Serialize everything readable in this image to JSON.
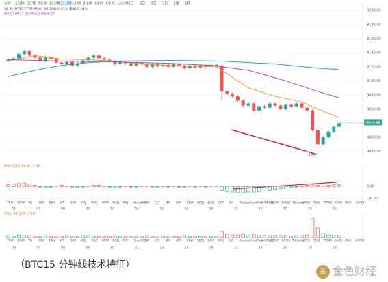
{
  "timeframes": [
    "分时",
    "1分钟",
    "3分钟",
    "5分钟",
    "10分钟",
    "15分钟",
    "1小时",
    "2小时",
    "4小时",
    "6小时",
    "12小时",
    "1日",
    "2日",
    "3日",
    "5日",
    "1周",
    "1月"
  ],
  "active_tab": 5,
  "header": {
    "line1": "56 收:9037.77 高:9040.98 涨幅:0.03% 振幅:0.04%",
    "line2": "MA30:9077.31 MA60:9099.37"
  },
  "indicators": [
    "TRIX",
    "BRAR",
    "VR",
    "OBV",
    "EMV",
    "WR",
    "SAR",
    "KDJ",
    "ROC",
    "MTM",
    "BOLL",
    "PSY",
    "StochRSI",
    "SMI",
    "CCI",
    "MA",
    "ATR",
    "BBW",
    "SKDJ",
    "BIAS",
    "DPO",
    "AO",
    "Position",
    "FundFlow",
    "AI-NEWS",
    "LSUR",
    "BASIS",
    "TVolume",
    "FTSS",
    "TSSI",
    "TTMU",
    "AI-BS",
    "MLR",
    "AI-FDI"
  ],
  "dates": [
    "06",
    "07",
    "08",
    "09",
    "10",
    "11",
    "12",
    "13",
    "14",
    "15",
    "16",
    "17",
    "18",
    "19"
  ],
  "caption": "（BTC15 分钟线技术特征）",
  "logo": "金色财经",
  "chart_data": [
    {
      "type": "candlestick",
      "up_color": "#26a69a",
      "down_color": "#ef5350",
      "open": [
        9128,
        9130,
        9132,
        9138,
        9142,
        9136,
        9133,
        9128,
        9134,
        9131,
        9126,
        9124,
        9127,
        9122,
        9125,
        9129,
        9133,
        9136,
        9132,
        9130,
        9128,
        9124,
        9127,
        9125,
        9122,
        9126,
        9124,
        9120,
        9124,
        9121,
        9123,
        9120,
        9124,
        9122,
        9118,
        9121,
        9119,
        9122,
        9120,
        9123,
        9121,
        9085,
        9082,
        9078,
        9072,
        9065,
        9068,
        9058,
        9064,
        9062,
        9068,
        9065,
        9060,
        9066,
        9064,
        9068,
        9062,
        9058,
        9030,
        9010,
        9020,
        9028,
        9035
      ],
      "high": [
        9132,
        9134,
        9140,
        9144,
        9144,
        9138,
        9135,
        9136,
        9136,
        9133,
        9128,
        9129,
        9129,
        9127,
        9131,
        9135,
        9138,
        9138,
        9134,
        9132,
        9130,
        9129,
        9129,
        9127,
        9128,
        9128,
        9126,
        9126,
        9126,
        9125,
        9125,
        9126,
        9126,
        9124,
        9123,
        9123,
        9124,
        9124,
        9125,
        9125,
        9123,
        9087,
        9084,
        9080,
        9074,
        9070,
        9070,
        9066,
        9066,
        9070,
        9070,
        9067,
        9068,
        9068,
        9070,
        9070,
        9064,
        9060,
        9032,
        9022,
        9030,
        9037,
        9042
      ],
      "low": [
        9126,
        9128,
        9130,
        9136,
        9134,
        9131,
        9126,
        9126,
        9129,
        9124,
        9122,
        9122,
        9120,
        9120,
        9123,
        9127,
        9131,
        9130,
        9128,
        9126,
        9122,
        9122,
        9123,
        9120,
        9120,
        9122,
        9118,
        9118,
        9119,
        9119,
        9118,
        9118,
        9120,
        9116,
        9116,
        9117,
        9117,
        9118,
        9118,
        9119,
        9072,
        9080,
        9076,
        9070,
        9063,
        9063,
        9056,
        9056,
        9060,
        9060,
        9063,
        9058,
        9058,
        9062,
        9062,
        9060,
        9056,
        9028,
        8996,
        9008,
        9018,
        9026,
        9033
      ],
      "close": [
        9130,
        9132,
        9138,
        9142,
        9136,
        9133,
        9128,
        9134,
        9131,
        9126,
        9124,
        9127,
        9122,
        9125,
        9129,
        9133,
        9136,
        9132,
        9130,
        9128,
        9124,
        9127,
        9125,
        9122,
        9126,
        9124,
        9120,
        9124,
        9121,
        9123,
        9120,
        9124,
        9122,
        9118,
        9121,
        9119,
        9122,
        9120,
        9123,
        9121,
        9085,
        9082,
        9078,
        9072,
        9065,
        9068,
        9058,
        9064,
        9062,
        9068,
        9065,
        9060,
        9066,
        9064,
        9068,
        9062,
        9058,
        9030,
        9010,
        9020,
        9028,
        9035,
        9040
      ],
      "lines": [
        {
          "color": "#f0a020",
          "x": [
            0,
            5,
            10,
            15,
            20,
            25,
            30,
            35,
            39,
            42,
            45,
            50,
            55,
            58,
            62
          ],
          "values": [
            9128,
            9136,
            9131,
            9130,
            9128,
            9124,
            9122,
            9121,
            9120,
            9105,
            9090,
            9078,
            9070,
            9060,
            9048
          ]
        },
        {
          "color": "#c040c0",
          "x": [
            0,
            10,
            20,
            30,
            38,
            45,
            52,
            58,
            62
          ],
          "values": [
            9130,
            9128,
            9127,
            9125,
            9122,
            9115,
            9100,
            9085,
            9076
          ]
        },
        {
          "color": "#1aa0c8",
          "x": [
            0,
            5,
            10,
            15,
            20,
            30,
            40,
            50,
            58,
            62
          ],
          "values": [
            9106,
            9115,
            9122,
            9126,
            9128,
            9129,
            9128,
            9124,
            9118,
            9116
          ]
        }
      ],
      "ylim": [
        8992,
        9205
      ],
      "yticks": [
        {
          "value": 9000,
          "label": "9000.00"
        },
        {
          "value": 9020,
          "label": "9020.00"
        },
        {
          "value": 9040,
          "label": "9040.00"
        },
        {
          "value": 9060,
          "label": "9060.00"
        },
        {
          "value": 9080,
          "label": "9080.00"
        },
        {
          "value": 9100,
          "label": "9100.00"
        },
        {
          "value": 9120,
          "label": "9120.00"
        },
        {
          "value": 9140,
          "label": "9140.00"
        },
        {
          "value": 9160,
          "label": "9160.00"
        },
        {
          "value": 9180,
          "label": "9180.00"
        },
        {
          "value": 9200,
          "label": "9200.00"
        }
      ],
      "last_price": {
        "value": 9040.98,
        "label": "9040.98"
      },
      "grid": true
    },
    {
      "type": "bar",
      "title": "MACD(12,26,9) -1.49",
      "pos_color": "#ef5350",
      "neg_color": "#26a69a",
      "values": [
        3,
        4,
        5,
        6,
        4,
        2,
        -1,
        -2,
        -1,
        1,
        2,
        1,
        -1,
        -2,
        -1,
        1,
        2,
        2,
        1,
        -1,
        -2,
        -1,
        0.5,
        -1,
        -1,
        1,
        1,
        -1,
        -1,
        1,
        -1,
        1,
        -1,
        -1,
        1,
        -1,
        1,
        -1,
        1,
        1,
        -6,
        -8,
        -9,
        -10,
        -10,
        -9,
        -9,
        -8,
        -7,
        -6,
        -5,
        -4,
        -3,
        -2,
        -1,
        1,
        2,
        3,
        2,
        1,
        2,
        3,
        3
      ],
      "ylim": [
        -25,
        29
      ],
      "yticks": [
        {
          "value": -20,
          "label": "-20.00"
        },
        {
          "value": 0,
          "label": "0.00"
        }
      ]
    },
    {
      "type": "bar",
      "title": "VOL: 84,204.2756",
      "values": [
        3,
        2,
        4,
        3,
        3,
        2,
        2,
        3,
        2,
        2,
        2,
        3,
        2,
        2,
        3,
        3,
        2,
        2,
        2,
        2,
        3,
        2,
        2,
        2,
        2,
        2,
        3,
        2,
        2,
        2,
        2,
        2,
        2,
        3,
        2,
        2,
        2,
        2,
        2,
        2,
        9,
        5,
        4,
        4,
        5,
        3,
        5,
        3,
        3,
        3,
        3,
        3,
        3,
        2,
        3,
        3,
        4,
        28,
        14,
        6,
        4,
        3,
        3
      ],
      "ylim": [
        0,
        30
      ]
    }
  ]
}
